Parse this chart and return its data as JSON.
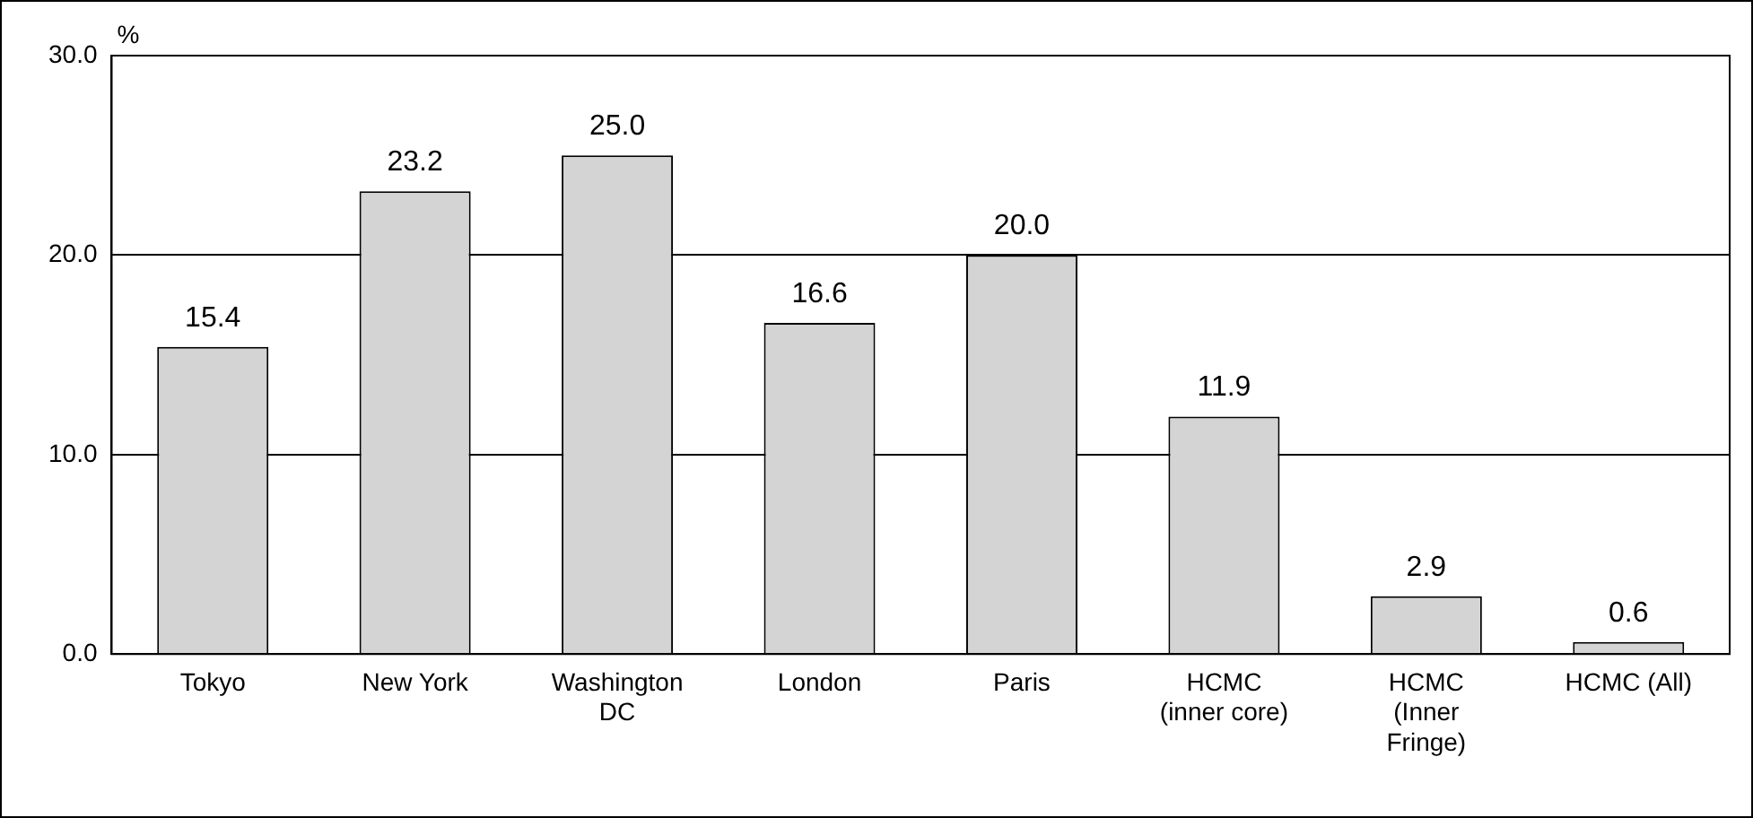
{
  "chart_data": {
    "type": "bar",
    "ylabel": "%",
    "categories": [
      "Tokyo",
      "New York",
      "Washington\nDC",
      "London",
      "Paris",
      "HCMC\n(inner core)",
      "HCMC\n(Inner\nFringe)",
      "HCMC (All)"
    ],
    "values": [
      15.4,
      23.2,
      25.0,
      16.6,
      20.0,
      11.9,
      2.9,
      0.6
    ],
    "value_labels": [
      "15.4",
      "23.2",
      "25.0",
      "16.6",
      "20.0",
      "11.9",
      "2.9",
      "0.6"
    ],
    "color": "#d4d4d4",
    "ylim": [
      0,
      30
    ],
    "yticks": [
      {
        "value": 0,
        "label": "0.0"
      },
      {
        "value": 10,
        "label": "10.0"
      },
      {
        "value": 20,
        "label": "20.0"
      },
      {
        "value": 30,
        "label": "30.0"
      }
    ],
    "grid": "y",
    "legend": false
  }
}
